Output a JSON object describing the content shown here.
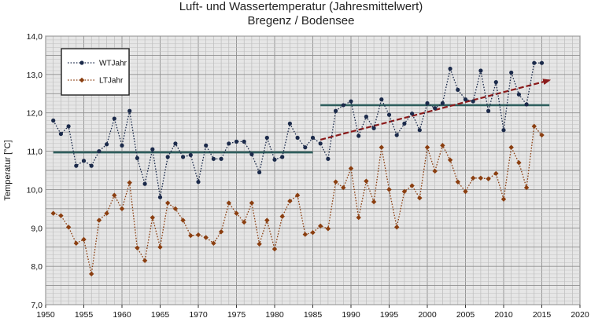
{
  "chart_data": {
    "type": "line",
    "title": "Luft- und Wassertemperatur (Jahresmittelwert)",
    "subtitle": "Bregenz / Bodensee",
    "ylabel": "Temperatur [°C]",
    "xlim": [
      1950,
      2020
    ],
    "ylim": [
      7.0,
      14.0
    ],
    "x_ticks": [
      "1950",
      "1955",
      "1960",
      "1965",
      "1970",
      "1975",
      "1980",
      "1985",
      "1990",
      "1995",
      "2000",
      "2005",
      "2010",
      "2015",
      "2020"
    ],
    "y_ticks": [
      "7,0",
      "8,0",
      "9,0",
      "10,0",
      "11,0",
      "12,0",
      "13,0",
      "14,0"
    ],
    "grid": true,
    "legend_position": "top-left",
    "series": [
      {
        "name": "WTJahr",
        "color": "#1b2a4a",
        "x": [
          1951,
          1952,
          1953,
          1954,
          1955,
          1956,
          1957,
          1958,
          1959,
          1960,
          1961,
          1962,
          1963,
          1964,
          1965,
          1966,
          1967,
          1968,
          1969,
          1970,
          1971,
          1972,
          1973,
          1974,
          1975,
          1976,
          1977,
          1978,
          1979,
          1980,
          1981,
          1982,
          1983,
          1984,
          1985,
          1986,
          1987,
          1988,
          1989,
          1990,
          1991,
          1992,
          1993,
          1994,
          1995,
          1996,
          1997,
          1998,
          1999,
          2000,
          2001,
          2002,
          2003,
          2004,
          2005,
          2006,
          2007,
          2008,
          2009,
          2010,
          2011,
          2012,
          2013,
          2014,
          2015
        ],
        "values": [
          11.8,
          11.45,
          11.65,
          10.62,
          10.75,
          10.62,
          11.0,
          11.18,
          11.85,
          11.15,
          12.05,
          10.82,
          10.15,
          11.05,
          9.8,
          10.85,
          11.2,
          10.85,
          10.9,
          10.2,
          11.15,
          10.8,
          10.8,
          11.2,
          11.25,
          11.25,
          10.92,
          10.45,
          11.35,
          10.78,
          10.85,
          11.72,
          11.35,
          11.1,
          11.35,
          11.2,
          10.8,
          12.05,
          12.2,
          12.3,
          11.4,
          11.9,
          11.6,
          12.35,
          11.95,
          11.42,
          11.72,
          11.98,
          11.55,
          12.25,
          12.12,
          12.25,
          13.15,
          12.6,
          12.35,
          12.3,
          13.1,
          12.05,
          12.8,
          11.55,
          13.05,
          12.48,
          12.22,
          13.3,
          13.3
        ]
      },
      {
        "name": "LTJahr",
        "color": "#8a3e10",
        "x": [
          1951,
          1952,
          1953,
          1954,
          1955,
          1956,
          1957,
          1958,
          1959,
          1960,
          1961,
          1962,
          1963,
          1964,
          1965,
          1966,
          1967,
          1968,
          1969,
          1970,
          1971,
          1972,
          1973,
          1974,
          1975,
          1976,
          1977,
          1978,
          1979,
          1980,
          1981,
          1982,
          1983,
          1984,
          1985,
          1986,
          1987,
          1988,
          1989,
          1990,
          1991,
          1992,
          1993,
          1994,
          1995,
          1996,
          1997,
          1998,
          1999,
          2000,
          2001,
          2002,
          2003,
          2004,
          2005,
          2006,
          2007,
          2008,
          2009,
          2010,
          2011,
          2012,
          2013,
          2014,
          2015
        ],
        "values": [
          9.38,
          9.32,
          9.02,
          8.6,
          8.7,
          7.8,
          9.2,
          9.38,
          9.85,
          9.5,
          10.18,
          8.48,
          8.15,
          9.27,
          8.5,
          9.65,
          9.5,
          9.2,
          8.8,
          8.82,
          8.75,
          8.6,
          8.9,
          9.65,
          9.38,
          9.15,
          9.65,
          8.58,
          9.2,
          8.45,
          9.3,
          9.7,
          9.85,
          8.83,
          8.88,
          9.05,
          8.98,
          10.2,
          10.05,
          10.55,
          9.27,
          10.22,
          9.68,
          11.1,
          10.0,
          9.02,
          9.95,
          10.1,
          9.78,
          11.1,
          10.48,
          11.15,
          10.77,
          10.2,
          9.95,
          10.3,
          10.3,
          10.28,
          10.42,
          9.75,
          11.1,
          10.7,
          10.05,
          11.65,
          11.42
        ]
      }
    ],
    "annotations": [
      {
        "kind": "mean_line",
        "x_range": [
          1951,
          1985
        ],
        "value": 10.97,
        "color": "#2f5f5e"
      },
      {
        "kind": "mean_line",
        "x_range": [
          1986,
          2016
        ],
        "value": 12.2,
        "color": "#2f5f5e"
      },
      {
        "kind": "trend_arrow",
        "from": [
          1986,
          11.3
        ],
        "to": [
          2016,
          12.85
        ],
        "color": "#8b1a1a"
      }
    ]
  }
}
